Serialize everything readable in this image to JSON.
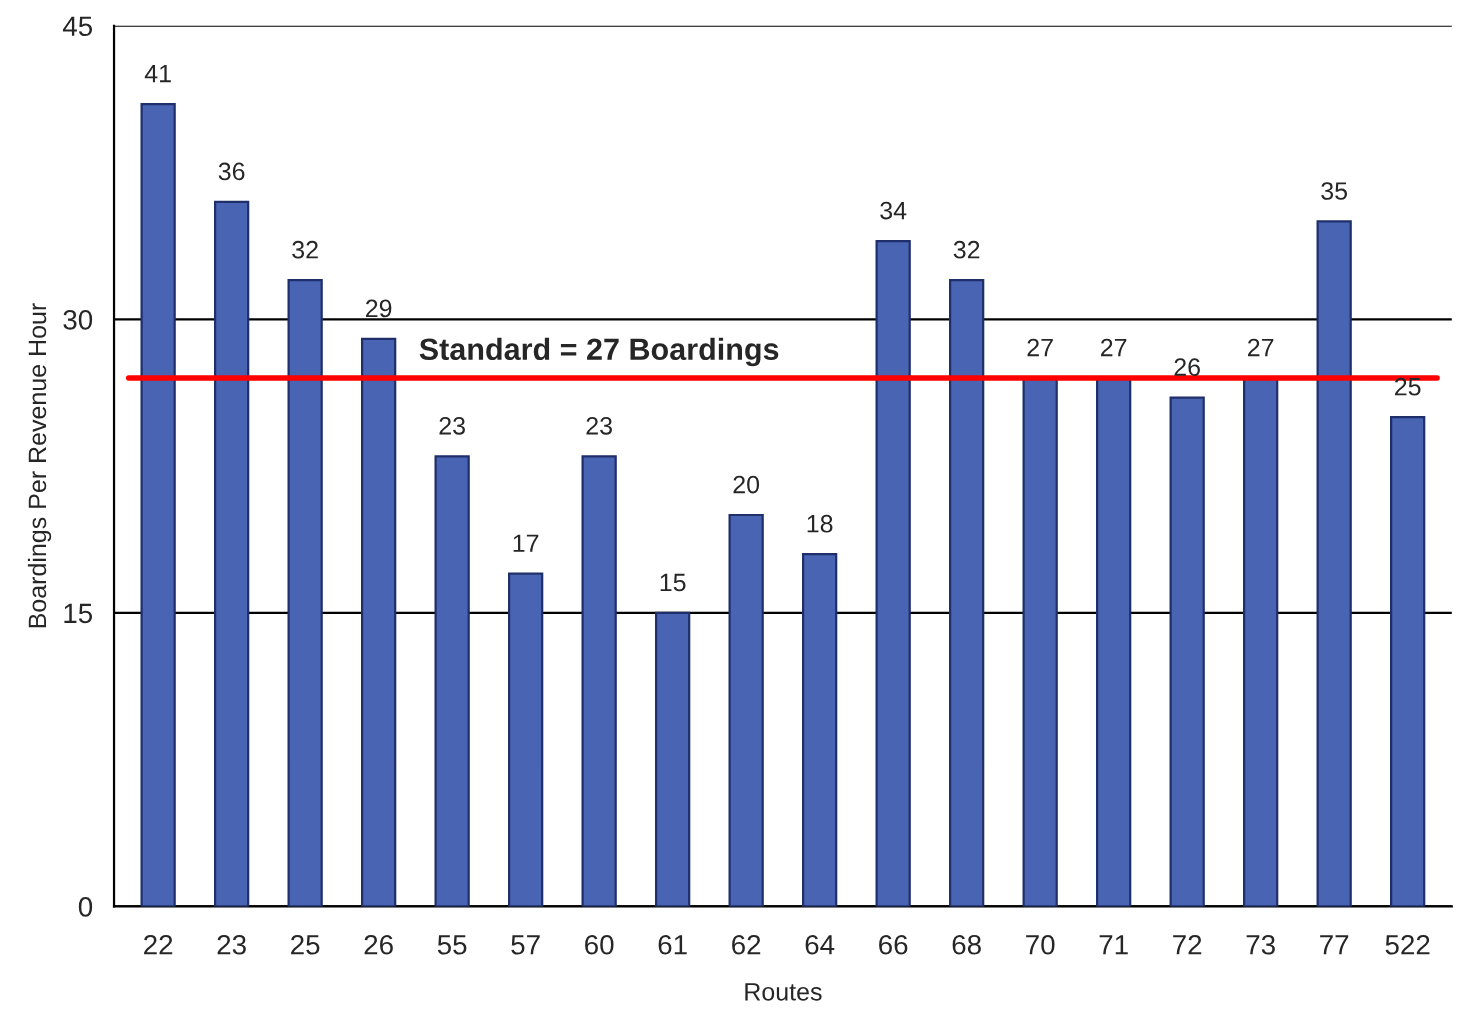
{
  "chart_data": {
    "type": "bar",
    "xlabel": "Routes",
    "ylabel": "Boardings Per Revenue Hour",
    "categories": [
      "22",
      "23",
      "25",
      "26",
      "55",
      "57",
      "60",
      "61",
      "62",
      "64",
      "66",
      "68",
      "70",
      "71",
      "72",
      "73",
      "77",
      "522"
    ],
    "values": [
      41,
      36,
      32,
      29,
      23,
      17,
      23,
      15,
      20,
      18,
      34,
      32,
      27,
      27,
      26,
      27,
      35,
      25
    ],
    "color": "#4a64b4",
    "data_labels": true,
    "ylim": [
      0,
      45
    ],
    "yticks": [
      0,
      15,
      30,
      45
    ],
    "grid": "y",
    "ref_lines": [
      {
        "axis": "y",
        "value": 27,
        "label": "Standard = 27 Boardings",
        "color": "#ff0000"
      }
    ]
  }
}
